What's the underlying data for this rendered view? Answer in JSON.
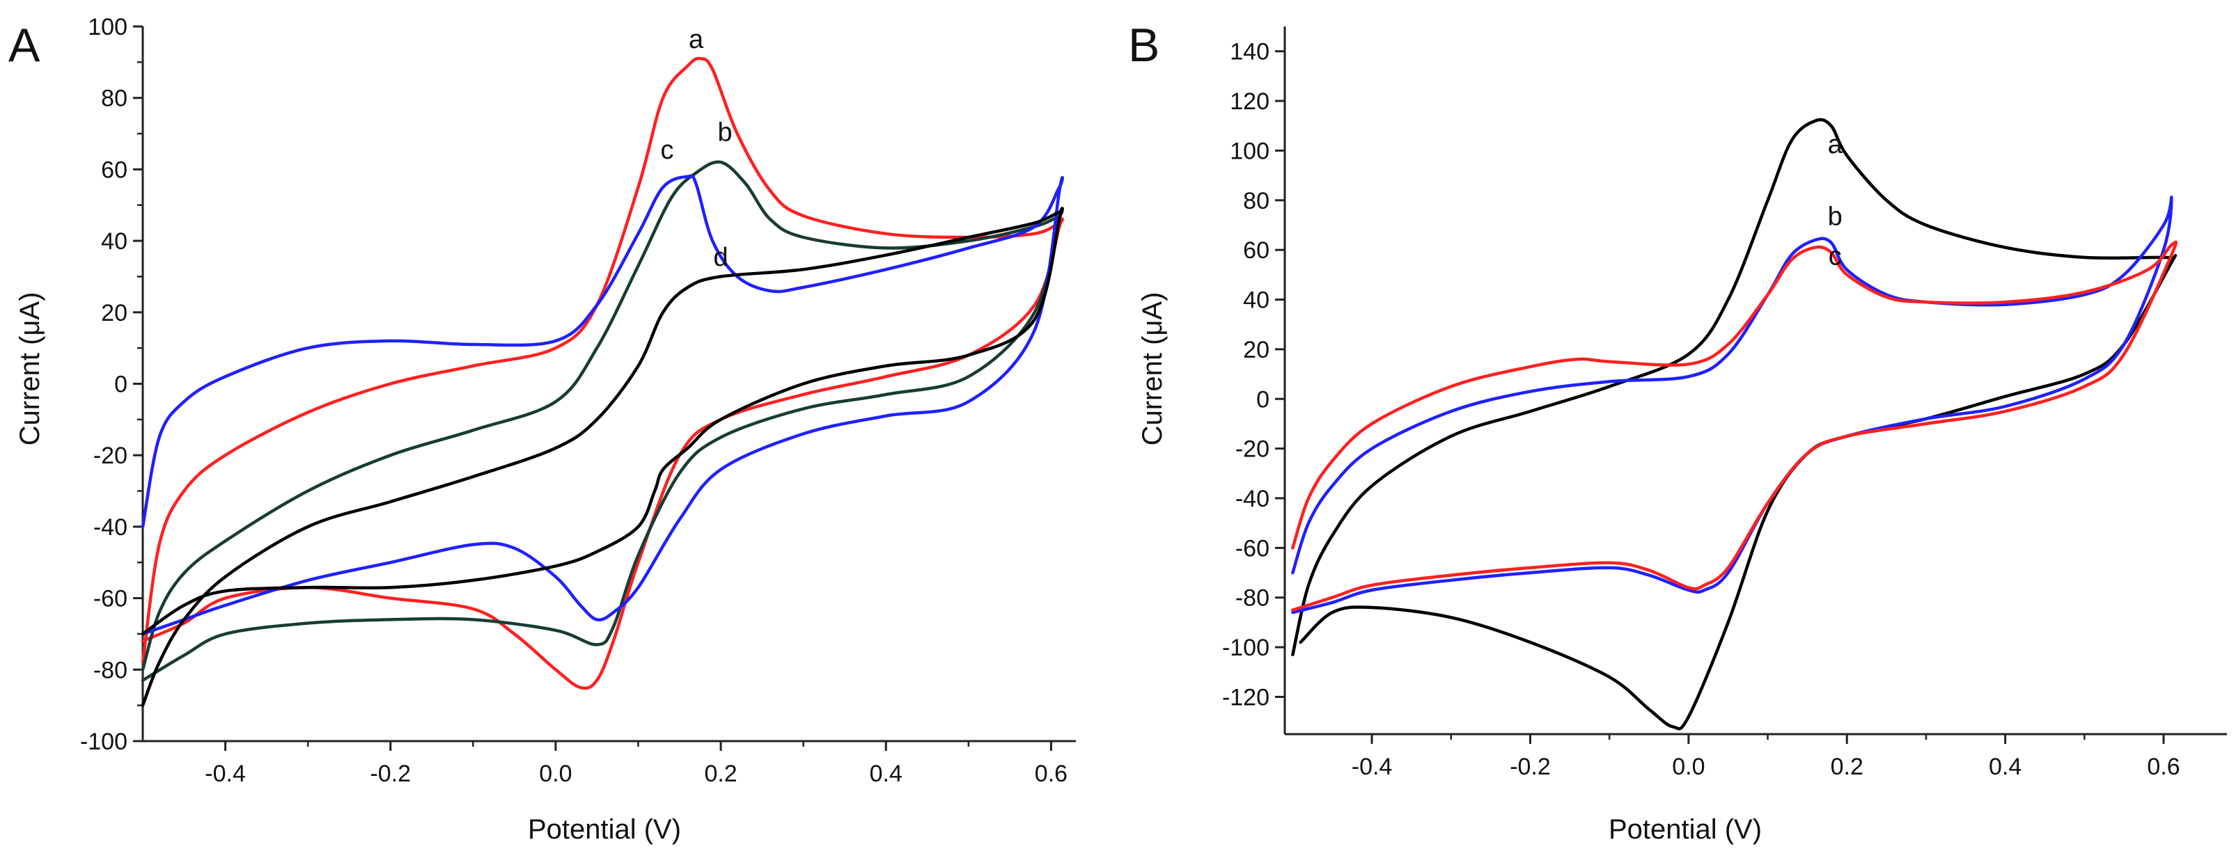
{
  "chart_data": [
    {
      "type": "line",
      "panel_label": "A",
      "xlabel": "Potential  (V)",
      "ylabel": "Current (μA)",
      "xlim": [
        -0.5,
        0.63
      ],
      "ylim": [
        -100,
        100
      ],
      "xticks": [
        -0.4,
        -0.2,
        0.0,
        0.2,
        0.4,
        0.6
      ],
      "xtick_labels": [
        "-0.4",
        "-0.2",
        "0.0",
        "0.2",
        "0.4",
        "0.6"
      ],
      "yticks": [
        -100,
        -80,
        -60,
        -40,
        -20,
        0,
        20,
        40,
        60,
        80,
        100
      ],
      "ytick_labels": [
        "-100",
        "-80",
        "-60",
        "-40",
        "-20",
        "0",
        "20",
        "40",
        "60",
        "80",
        "100"
      ],
      "series": [
        {
          "name": "a",
          "color": "#ff2020",
          "label": {
            "text": "a",
            "x": 0.17,
            "y": 94
          },
          "x": [
            -0.5,
            -0.48,
            -0.45,
            -0.4,
            -0.3,
            -0.2,
            -0.1,
            0.0,
            0.05,
            0.1,
            0.13,
            0.16,
            0.175,
            0.19,
            0.22,
            0.26,
            0.3,
            0.4,
            0.5,
            0.58,
            0.61,
            0.61,
            0.58,
            0.5,
            0.4,
            0.3,
            0.2,
            0.15,
            0.1,
            0.07,
            0.05,
            0.03,
            0.0,
            -0.05,
            -0.1,
            -0.2,
            -0.3,
            -0.4,
            -0.45,
            -0.5
          ],
          "y": [
            -78,
            -45,
            -30,
            -20,
            -8,
            0,
            5,
            10,
            22,
            55,
            80,
            89,
            91,
            88,
            70,
            54,
            47,
            42,
            41,
            42,
            45,
            44,
            22,
            8,
            2,
            -3,
            -10,
            -20,
            -50,
            -72,
            -83,
            -85,
            -80,
            -70,
            -63,
            -60,
            -57,
            -60,
            -67,
            -72
          ]
        },
        {
          "name": "b",
          "color": "#173d35",
          "label": {
            "text": "b",
            "x": 0.205,
            "y": 68
          },
          "x": [
            -0.5,
            -0.48,
            -0.45,
            -0.4,
            -0.3,
            -0.2,
            -0.1,
            0.0,
            0.05,
            0.1,
            0.14,
            0.17,
            0.2,
            0.23,
            0.26,
            0.3,
            0.4,
            0.5,
            0.58,
            0.61,
            0.61,
            0.58,
            0.5,
            0.4,
            0.3,
            0.2,
            0.15,
            0.1,
            0.07,
            0.05,
            0.0,
            -0.1,
            -0.2,
            -0.3,
            -0.4,
            -0.45,
            -0.5
          ],
          "y": [
            -80,
            -64,
            -53,
            -44,
            -30,
            -20,
            -13,
            -5,
            10,
            33,
            52,
            59,
            62,
            56,
            46,
            41,
            38,
            40,
            44,
            47,
            47,
            20,
            2,
            -3,
            -7,
            -15,
            -25,
            -48,
            -68,
            -73,
            -69,
            -66,
            -66,
            -67,
            -70,
            -76,
            -83
          ]
        },
        {
          "name": "c",
          "color": "#2020ff",
          "label": {
            "text": "c",
            "x": 0.135,
            "y": 63
          },
          "x": [
            -0.5,
            -0.48,
            -0.45,
            -0.4,
            -0.3,
            -0.2,
            -0.1,
            0.0,
            0.05,
            0.1,
            0.13,
            0.16,
            0.17,
            0.19,
            0.22,
            0.26,
            0.3,
            0.4,
            0.5,
            0.58,
            0.61,
            0.61,
            0.58,
            0.5,
            0.4,
            0.3,
            0.2,
            0.15,
            0.1,
            0.07,
            0.05,
            0.03,
            0.0,
            -0.05,
            -0.1,
            -0.2,
            -0.3,
            -0.4,
            -0.45,
            -0.5
          ],
          "y": [
            -40,
            -15,
            -5,
            2,
            10,
            12,
            11,
            12,
            22,
            42,
            55,
            58,
            56,
            40,
            30,
            26,
            27,
            32,
            38,
            44,
            55,
            54,
            15,
            -5,
            -9,
            -14,
            -24,
            -38,
            -57,
            -64,
            -66,
            -62,
            -54,
            -46,
            -45,
            -50,
            -55,
            -62,
            -66,
            -70
          ]
        },
        {
          "name": "d",
          "color": "#000000",
          "label": {
            "text": "d",
            "x": 0.2,
            "y": 33
          },
          "x": [
            -0.5,
            -0.48,
            -0.45,
            -0.4,
            -0.3,
            -0.2,
            -0.1,
            0.0,
            0.05,
            0.1,
            0.13,
            0.16,
            0.2,
            0.3,
            0.4,
            0.5,
            0.58,
            0.61,
            0.61,
            0.58,
            0.5,
            0.4,
            0.3,
            0.2,
            0.16,
            0.13,
            0.12,
            0.1,
            0.05,
            0.0,
            -0.1,
            -0.2,
            -0.3,
            -0.4,
            -0.45,
            -0.5
          ],
          "y": [
            -90,
            -78,
            -66,
            -54,
            -40,
            -33,
            -26,
            -18,
            -10,
            5,
            20,
            27,
            30,
            32,
            36,
            41,
            45,
            48,
            46,
            18,
            8,
            5,
            0,
            -10,
            -18,
            -24,
            -30,
            -40,
            -47,
            -51,
            -55,
            -57,
            -57,
            -58,
            -62,
            -70
          ]
        }
      ]
    },
    {
      "type": "line",
      "panel_label": "B",
      "xlabel": "Potential (V)",
      "ylabel": "Current (μA)",
      "xlim": [
        -0.51,
        0.68
      ],
      "ylim": [
        -135,
        150
      ],
      "xticks": [
        -0.4,
        -0.2,
        0.0,
        0.2,
        0.4,
        0.6
      ],
      "xtick_labels": [
        "-0.4",
        "-0.2",
        "0.0",
        "0.2",
        "0.4",
        "0.6"
      ],
      "yticks": [
        -120,
        -100,
        -80,
        -60,
        -40,
        -20,
        0,
        20,
        40,
        60,
        80,
        100,
        120,
        140
      ],
      "ytick_labels": [
        "-120",
        "-100",
        "-80",
        "-60",
        "-40",
        "-20",
        "0",
        "20",
        "40",
        "60",
        "80",
        "100",
        "120",
        "140"
      ],
      "series": [
        {
          "name": "a",
          "color": "#000000",
          "label": {
            "text": "a",
            "x": 0.185,
            "y": 99
          },
          "x": [
            -0.5,
            -0.48,
            -0.45,
            -0.4,
            -0.3,
            -0.2,
            -0.1,
            0.0,
            0.05,
            0.1,
            0.13,
            0.16,
            0.18,
            0.2,
            0.25,
            0.3,
            0.4,
            0.5,
            0.6,
            0.61,
            0.61,
            0.55,
            0.5,
            0.4,
            0.3,
            0.2,
            0.15,
            0.1,
            0.05,
            0.0,
            -0.02,
            -0.05,
            -0.1,
            -0.2,
            -0.3,
            -0.4,
            -0.45,
            -0.49
          ],
          "y": [
            -103,
            -75,
            -55,
            -35,
            -15,
            -5,
            5,
            18,
            40,
            80,
            104,
            112,
            110,
            98,
            80,
            70,
            61,
            57,
            57,
            56,
            55,
            22,
            10,
            1,
            -8,
            -15,
            -22,
            -45,
            -90,
            -128,
            -132,
            -125,
            -112,
            -98,
            -88,
            -84,
            -86,
            -98
          ]
        },
        {
          "name": "b",
          "color": "#2020ff",
          "label": {
            "text": "b",
            "x": 0.185,
            "y": 70
          },
          "x": [
            -0.5,
            -0.48,
            -0.45,
            -0.4,
            -0.3,
            -0.2,
            -0.1,
            0.0,
            0.05,
            0.1,
            0.13,
            0.16,
            0.18,
            0.2,
            0.25,
            0.3,
            0.4,
            0.5,
            0.55,
            0.6,
            0.61,
            0.6,
            0.55,
            0.5,
            0.4,
            0.3,
            0.2,
            0.15,
            0.1,
            0.05,
            0.02,
            0.0,
            -0.05,
            -0.1,
            -0.2,
            -0.3,
            -0.4,
            -0.45,
            -0.5
          ],
          "y": [
            -70,
            -50,
            -35,
            -20,
            -5,
            3,
            7,
            9,
            18,
            42,
            58,
            64,
            63,
            52,
            42,
            39,
            38,
            42,
            50,
            70,
            81,
            60,
            22,
            8,
            -3,
            -8,
            -15,
            -22,
            -42,
            -70,
            -77,
            -77,
            -71,
            -68,
            -70,
            -73,
            -77,
            -82,
            -86
          ]
        },
        {
          "name": "c",
          "color": "#ff2020",
          "label": {
            "text": "c",
            "x": 0.185,
            "y": 54
          },
          "x": [
            -0.5,
            -0.48,
            -0.45,
            -0.4,
            -0.3,
            -0.2,
            -0.14,
            -0.1,
            0.0,
            0.05,
            0.1,
            0.13,
            0.16,
            0.18,
            0.2,
            0.25,
            0.3,
            0.4,
            0.5,
            0.58,
            0.61,
            0.61,
            0.55,
            0.5,
            0.4,
            0.3,
            0.2,
            0.15,
            0.1,
            0.05,
            0.02,
            0.0,
            -0.05,
            -0.1,
            -0.2,
            -0.3,
            -0.4,
            -0.45,
            -0.5
          ],
          "y": [
            -60,
            -40,
            -25,
            -10,
            5,
            13,
            16,
            15,
            14,
            22,
            42,
            56,
            61,
            59,
            50,
            41,
            39,
            39,
            43,
            52,
            62,
            58,
            18,
            5,
            -5,
            -10,
            -15,
            -22,
            -42,
            -68,
            -75,
            -76,
            -69,
            -66,
            -68,
            -71,
            -75,
            -80,
            -85
          ]
        }
      ]
    }
  ]
}
